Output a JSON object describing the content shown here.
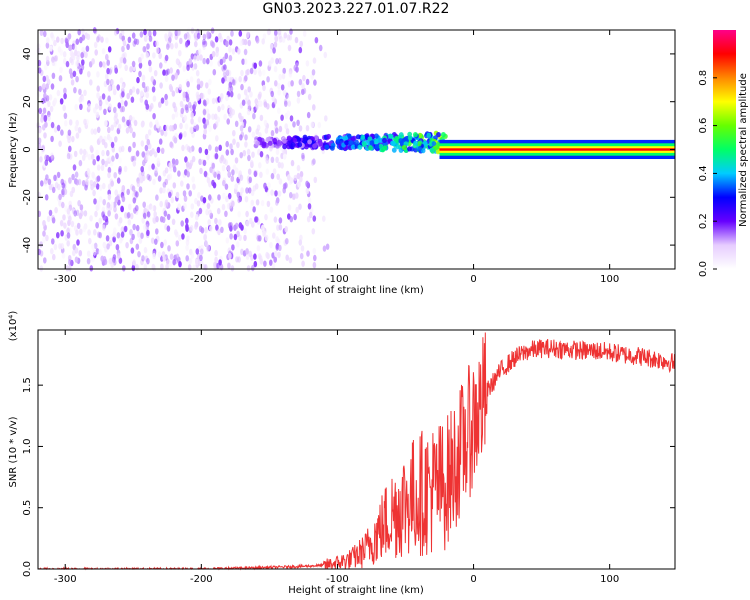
{
  "title": "GN03.2023.227.01.07.R22",
  "chart_data": [
    {
      "type": "heatmap",
      "title": "GN03.2023.227.01.07.R22",
      "xlabel": "Height of straight line (km)",
      "ylabel": "Frequency (Hz)",
      "xlim": [
        -320,
        148
      ],
      "ylim": [
        -50,
        50
      ],
      "xticks": [
        -300,
        -200,
        -100,
        0,
        100
      ],
      "xtick_labels": [
        "-300",
        "-200",
        "-100",
        "0",
        "100"
      ],
      "yticks": [
        -40,
        -20,
        0,
        20,
        40
      ],
      "ytick_labels": [
        "-40",
        "-20",
        "0",
        "20",
        "40"
      ],
      "colorbar": {
        "label": "Normalized spectral amplitude",
        "range": [
          0,
          1
        ],
        "ticks": [
          0.0,
          0.2,
          0.4,
          0.6,
          0.8
        ],
        "tick_labels": [
          "0.0",
          "0.2",
          "0.4",
          "0.6",
          "0.8"
        ],
        "colormap": [
          "#ffffff",
          "#e6ccff",
          "#6600ff",
          "#0000ff",
          "#00ccff",
          "#00ff66",
          "#66ff00",
          "#ffff00",
          "#ff8800",
          "#ff0000",
          "#ff0088"
        ]
      },
      "features": [
        {
          "name": "broadband noise",
          "x_range": [
            -320,
            -105
          ],
          "freq_range": [
            -50,
            50
          ],
          "amplitude": 0.1
        },
        {
          "name": "emerging signal",
          "x_range": [
            -160,
            -20
          ],
          "freq_center": 3,
          "amplitude": 0.45
        },
        {
          "name": "steady tone",
          "x_range": [
            -25,
            148
          ],
          "freq_center": 0,
          "amplitude": 0.9
        }
      ]
    },
    {
      "type": "line",
      "xlabel": "Height of straight line (km)",
      "ylabel": "SNR (10 * v/v)",
      "y_multiplier": "(x10⁴)",
      "xlim": [
        -320,
        148
      ],
      "ylim": [
        0,
        1.95
      ],
      "xticks": [
        -300,
        -200,
        -100,
        0,
        100
      ],
      "xtick_labels": [
        "-300",
        "-200",
        "-100",
        "0",
        "100"
      ],
      "yticks": [
        0.0,
        0.5,
        1.0,
        1.5
      ],
      "ytick_labels": [
        "0.0",
        "0.5",
        "1.0",
        "1.5"
      ],
      "color": "#ee3333",
      "series": [
        {
          "x": [
            -320,
            -280,
            -240,
            -200,
            -160,
            -130,
            -110,
            -100,
            -90,
            -80,
            -70,
            -60,
            -50,
            -40,
            -30,
            -20,
            -10,
            0,
            10,
            20,
            30,
            40,
            50,
            60,
            70,
            80,
            90,
            100,
            110,
            120,
            130,
            140,
            148
          ],
          "values": [
            0.0,
            0.0,
            0.0,
            0.0,
            0.01,
            0.02,
            0.03,
            0.05,
            0.08,
            0.15,
            0.3,
            0.45,
            0.55,
            0.62,
            0.65,
            0.7,
            0.95,
            1.2,
            1.45,
            1.62,
            1.72,
            1.78,
            1.8,
            1.8,
            1.79,
            1.78,
            1.78,
            1.77,
            1.75,
            1.74,
            1.72,
            1.7,
            1.68
          ]
        }
      ]
    }
  ]
}
